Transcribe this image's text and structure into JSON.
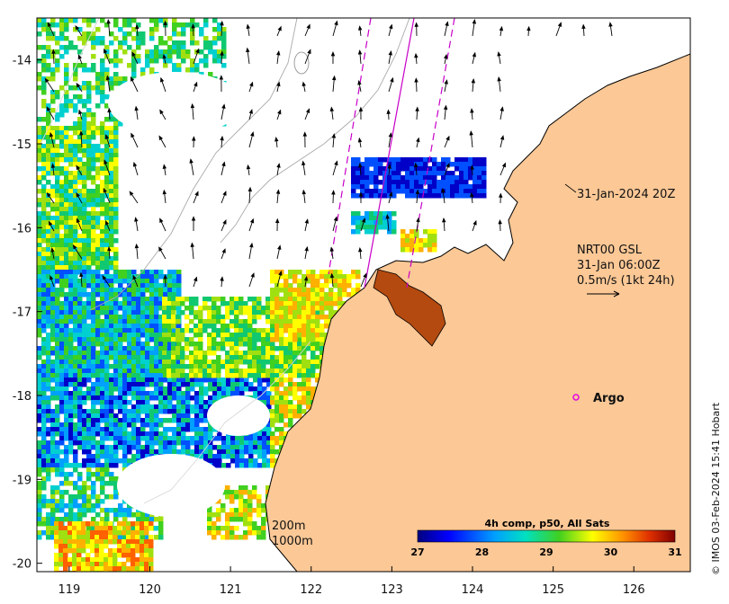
{
  "map": {
    "x_axis": {
      "ticks": [
        "119",
        "120",
        "121",
        "122",
        "123",
        "124",
        "125",
        "126"
      ],
      "range": [
        118.6,
        126.7
      ]
    },
    "y_axis": {
      "ticks": [
        "-14",
        "-15",
        "-16",
        "-17",
        "-18",
        "-19",
        "-20"
      ],
      "range": [
        -20.1,
        -13.5
      ]
    },
    "track_time_label": "31-Jan-2024 20Z",
    "current_legend": {
      "line1": "NRT00 GSL",
      "line2": "31-Jan 06:00Z",
      "line3": "0.5m/s (1kt 24h)"
    },
    "argo_label": "Argo",
    "contours": {
      "label_200": "200m",
      "label_1000": "1000m"
    },
    "colorbar": {
      "title": "4h comp, p50, All Sats",
      "ticks": [
        "27",
        "28",
        "29",
        "30",
        "31"
      ],
      "range": [
        27,
        31
      ]
    },
    "credit": "© IMOS 03-Feb-2024 15:41 Hobart",
    "colors": {
      "land": "#fbc896",
      "coast": "#000000",
      "track": "#c800c8",
      "argo": "#e600e6"
    }
  }
}
